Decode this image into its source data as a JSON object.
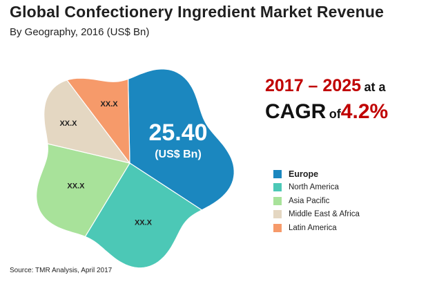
{
  "header": {
    "title": "Global Confectionery Ingredient Market Revenue",
    "subtitle": "By Geography, 2016 (US$ Bn)"
  },
  "source": "Source: TMR Analysis, April 2017",
  "cagr": {
    "years": "2017 – 2025",
    "at_a": "at a",
    "cagr_label": "CAGR",
    "of_label": "of",
    "rate": "4.2%"
  },
  "chart_data": {
    "type": "pie",
    "title": "Global Confectionery Ingredient Market Revenue",
    "subtitle": "By Geography, 2016 (US$ Bn)",
    "center_value": "25.40",
    "center_unit": "(US$ Bn)",
    "legend_position": "right",
    "slices": [
      {
        "name": "Europe",
        "label": "",
        "share": 0.345,
        "color": "#1b87bf"
      },
      {
        "name": "North America",
        "label": "XX.X",
        "share": 0.245,
        "color": "#4cc8b6"
      },
      {
        "name": "Asia Pacific",
        "label": "XX.X",
        "share": 0.2,
        "color": "#a8e29a"
      },
      {
        "name": "Middle East & Africa",
        "label": "XX.X",
        "share": 0.11,
        "color": "#e4d7c2"
      },
      {
        "name": "Latin America",
        "label": "XX.X",
        "share": 0.1,
        "color": "#f69a6a"
      }
    ]
  }
}
